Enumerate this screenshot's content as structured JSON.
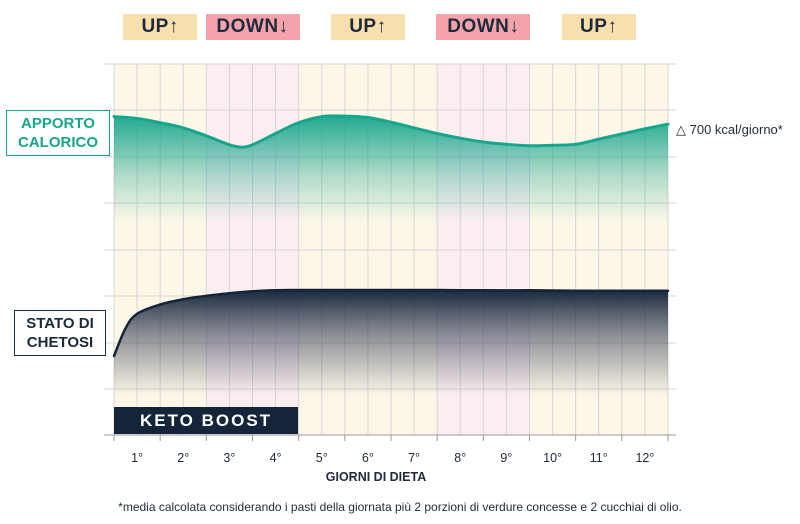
{
  "chart_data": {
    "type": "area",
    "xlabel": "GIORNI DI DIETA",
    "categories": [
      "1°",
      "2°",
      "3°",
      "4°",
      "5°",
      "6°",
      "7°",
      "8°",
      "9°",
      "10°",
      "11°",
      "12°"
    ],
    "phases": [
      {
        "label": "UP↑",
        "kind": "up",
        "from_day": 0,
        "to_day": 2
      },
      {
        "label": "DOWN↓",
        "kind": "down",
        "from_day": 2,
        "to_day": 4
      },
      {
        "label": "UP↑",
        "kind": "up",
        "from_day": 4,
        "to_day": 7
      },
      {
        "label": "DOWN↓",
        "kind": "down",
        "from_day": 7,
        "to_day": 9
      },
      {
        "label": "UP↑",
        "kind": "up",
        "from_day": 9,
        "to_day": 12
      }
    ],
    "series": [
      {
        "name": "APPORTO CALORICO",
        "color": "#17a58c",
        "x": [
          0,
          0.5,
          1,
          1.5,
          2,
          2.5,
          2.75,
          3,
          3.5,
          4,
          4.5,
          5,
          5.5,
          6,
          6.5,
          7,
          7.5,
          8,
          8.5,
          9,
          9.5,
          10,
          10.5,
          11,
          11.5,
          12
        ],
        "values": [
          0.86,
          0.82,
          0.73,
          0.62,
          0.45,
          0.26,
          0.21,
          0.26,
          0.5,
          0.73,
          0.86,
          0.87,
          0.84,
          0.74,
          0.62,
          0.5,
          0.4,
          0.32,
          0.27,
          0.24,
          0.25,
          0.27,
          0.38,
          0.49,
          0.6,
          0.7
        ]
      },
      {
        "name": "STATO DI CHETOSI",
        "color": "#14253a",
        "x": [
          0,
          0.25,
          0.5,
          1,
          1.5,
          2,
          2.5,
          3,
          3.5,
          4,
          5,
          6,
          7,
          8,
          9,
          10,
          11,
          12
        ],
        "values": [
          0.0,
          0.42,
          0.64,
          0.78,
          0.86,
          0.91,
          0.95,
          0.98,
          0.995,
          1.0,
          1.0,
          1.0,
          1.0,
          0.995,
          0.995,
          0.99,
          0.99,
          0.99
        ]
      }
    ],
    "delta_note": "△ 700 kcal/giorno*",
    "keto_boost": {
      "label": "KETO BOOST",
      "from_day": 0,
      "to_day": 4
    },
    "footnote": "*media calcolata considerando i pasti della giornata più 2 porzioni di verdure concesse e 2 cucchiai di olio.",
    "grid": true,
    "colors": {
      "up_band": "#fdf7e8",
      "down_band": "#fceef0",
      "up_tag": "#f8dfae",
      "down_tag": "#f4a3ad",
      "teal": "#17a58c",
      "navy": "#14253a"
    }
  }
}
